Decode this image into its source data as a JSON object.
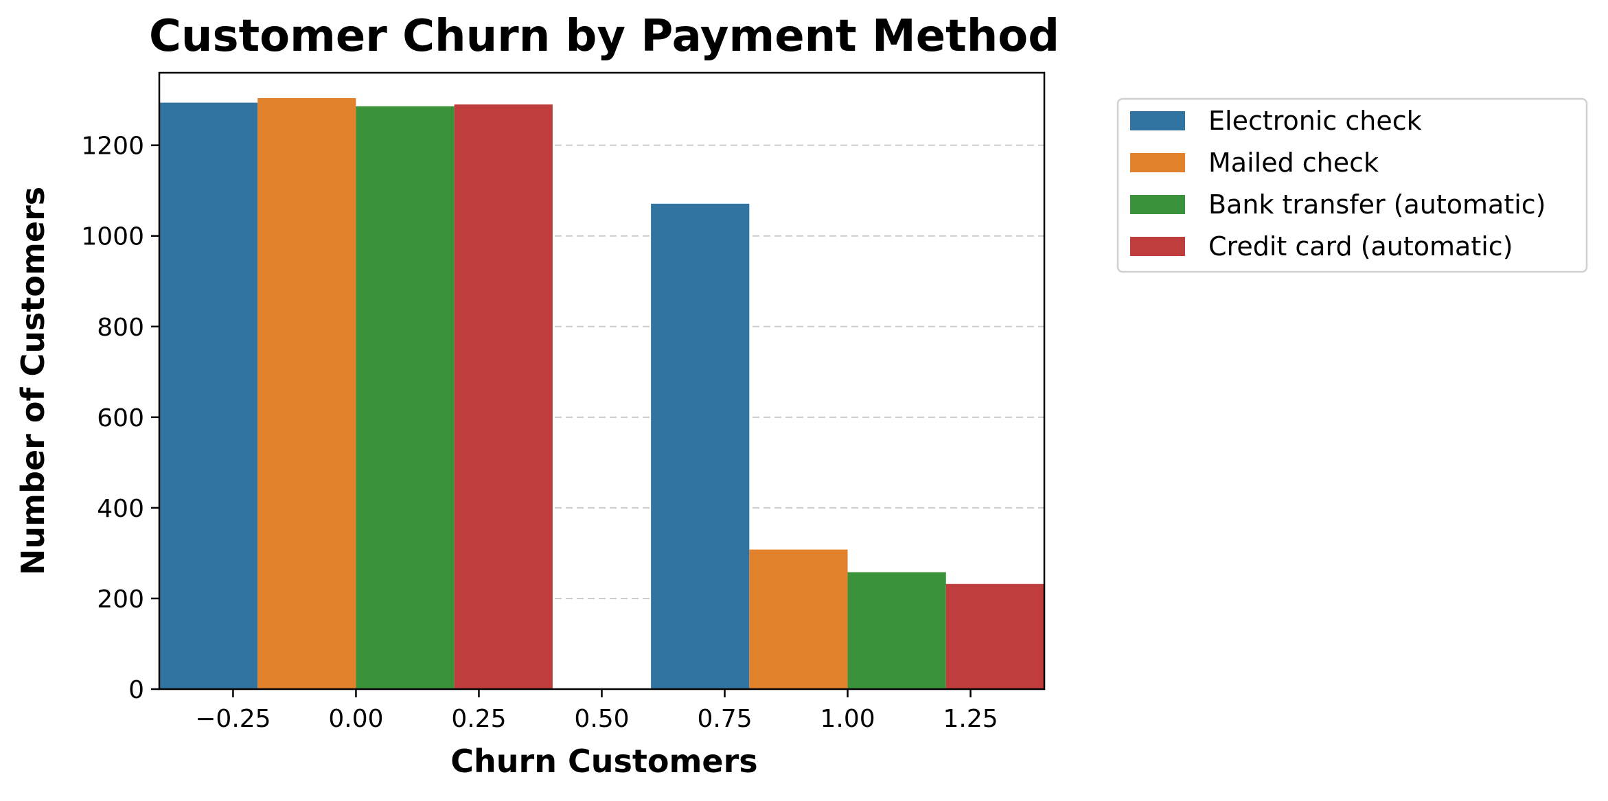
{
  "chart_data": {
    "type": "bar",
    "title": "Customer Churn by Payment Method",
    "xlabel": "Churn Customers",
    "ylabel": "Number of Customers",
    "groups": [
      0,
      1
    ],
    "xlim": [
      -0.4,
      1.4
    ],
    "ylim": [
      0,
      1360
    ],
    "xticks": [
      -0.25,
      0.0,
      0.25,
      0.5,
      0.75,
      1.0,
      1.25
    ],
    "xtick_labels": [
      "−0.25",
      "0.00",
      "0.25",
      "0.50",
      "0.75",
      "1.00",
      "1.25"
    ],
    "yticks": [
      0,
      200,
      400,
      600,
      800,
      1000,
      1200
    ],
    "ytick_labels": [
      "0",
      "200",
      "400",
      "600",
      "800",
      "1000",
      "1200"
    ],
    "grid": "y-dashed",
    "legend_position": "outside-right-top",
    "series": [
      {
        "name": "Electronic check",
        "color": "#3274a1",
        "values": [
          1294,
          1071
        ]
      },
      {
        "name": "Mailed check",
        "color": "#e1812c",
        "values": [
          1304,
          308
        ]
      },
      {
        "name": "Bank transfer (automatic)",
        "color": "#3a923a",
        "values": [
          1286,
          258
        ]
      },
      {
        "name": "Credit card (automatic)",
        "color": "#c03d3e",
        "values": [
          1290,
          232
        ]
      }
    ]
  }
}
